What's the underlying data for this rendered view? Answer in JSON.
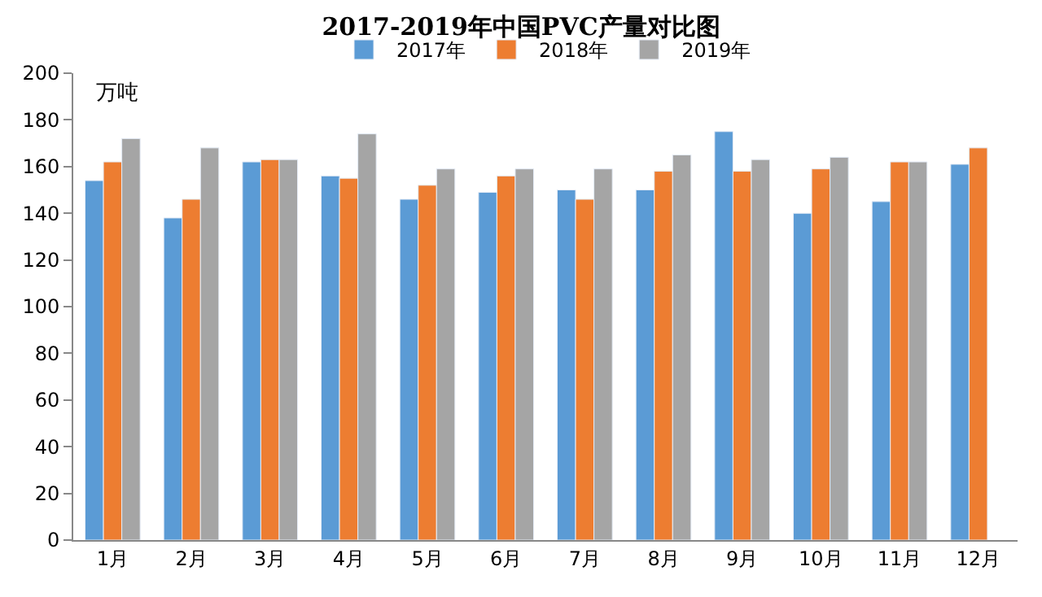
{
  "chart_data": {
    "type": "bar",
    "title": "2017-2019年中国PVC产量对比图",
    "annotations": [
      "万吨"
    ],
    "categories": [
      "1月",
      "2月",
      "3月",
      "4月",
      "5月",
      "6月",
      "7月",
      "8月",
      "9月",
      "10月",
      "11月",
      "12月"
    ],
    "series": [
      {
        "name": "2017年",
        "color": "#5b9bd5",
        "values": [
          154,
          138,
          162,
          156,
          146,
          149,
          150,
          150,
          175,
          140,
          145,
          161
        ]
      },
      {
        "name": "2018年",
        "color": "#ed7d31",
        "values": [
          162,
          146,
          163,
          155,
          152,
          156,
          146,
          158,
          158,
          159,
          162,
          168
        ]
      },
      {
        "name": "2019年",
        "color": "#a5a5a5",
        "values": [
          172,
          168,
          163,
          174,
          159,
          159,
          159,
          165,
          163,
          164,
          162,
          null
        ]
      }
    ],
    "ylim": [
      0,
      200
    ],
    "yticks": [
      0,
      20,
      40,
      60,
      80,
      100,
      120,
      140,
      160,
      180,
      200
    ],
    "grid": false,
    "legend": "top"
  }
}
